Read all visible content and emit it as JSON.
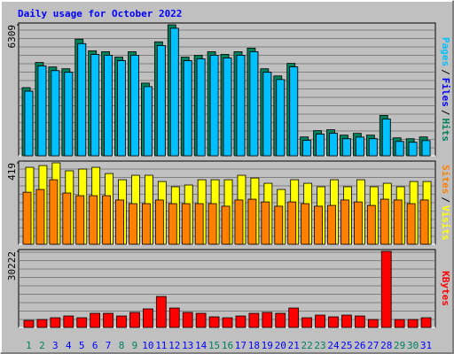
{
  "chart_data": [
    {
      "type": "bar",
      "title": "Daily usage for October 2022",
      "legend_separator": "/",
      "categories": [
        "1",
        "2",
        "3",
        "4",
        "5",
        "6",
        "7",
        "8",
        "9",
        "10",
        "11",
        "12",
        "13",
        "14",
        "15",
        "16",
        "17",
        "18",
        "19",
        "20",
        "21",
        "22",
        "23",
        "24",
        "25",
        "26",
        "27",
        "28",
        "29",
        "30",
        "31"
      ],
      "category_colors": [
        "#00805c",
        "#00805c",
        "#0000ff",
        "#0000ff",
        "#0000ff",
        "#0000ff",
        "#0000ff",
        "#00805c",
        "#00805c",
        "#0000ff",
        "#0000ff",
        "#0000ff",
        "#0000ff",
        "#0000ff",
        "#00805c",
        "#00805c",
        "#0000ff",
        "#0000ff",
        "#0000ff",
        "#0000ff",
        "#0000ff",
        "#00805c",
        "#00805c",
        "#0000ff",
        "#0000ff",
        "#0000ff",
        "#0000ff",
        "#0000ff",
        "#00805c",
        "#00805c",
        "#0000ff"
      ],
      "ylim": [
        0,
        6309
      ],
      "yticks": [
        6309
      ],
      "series": [
        {
          "name": "Hits",
          "color": "#00805c",
          "values": [
            3283,
            4494,
            4278,
            4191,
            5618,
            5056,
            5013,
            4753,
            5013,
            3500,
            5488,
            6309,
            4753,
            4840,
            5013,
            4883,
            5013,
            5186,
            4191,
            3846,
            4451,
            907,
            1210,
            1253,
            994,
            1080,
            994,
            1945,
            864,
            821,
            907
          ]
        },
        {
          "name": "Files",
          "color": "#0000ff",
          "values": [
            3110,
            4320,
            4100,
            4020,
            5400,
            4880,
            4840,
            4580,
            4840,
            3330,
            5310,
            6140,
            4580,
            4670,
            4840,
            4710,
            4840,
            5010,
            4020,
            3670,
            4280,
            740,
            1040,
            1080,
            820,
            900,
            820,
            1770,
            690,
            650,
            730
          ]
        },
        {
          "name": "Pages",
          "color": "#00c0ff",
          "values": [
            3110,
            4320,
            4100,
            4020,
            5400,
            4880,
            4840,
            4580,
            4840,
            3330,
            5310,
            6140,
            4580,
            4670,
            4840,
            4710,
            4840,
            5010,
            4020,
            3670,
            4280,
            740,
            1040,
            1080,
            820,
            900,
            820,
            1770,
            690,
            650,
            730
          ]
        }
      ]
    },
    {
      "type": "bar",
      "ylim": [
        0,
        419
      ],
      "yticks": [
        419
      ],
      "series": [
        {
          "name": "Visits",
          "color": "#ffff00",
          "values": [
            396,
            405,
            419,
            378,
            387,
            396,
            364,
            332,
            355,
            355,
            323,
            296,
            305,
            332,
            332,
            332,
            355,
            341,
            314,
            282,
            332,
            314,
            296,
            332,
            296,
            332,
            296,
            314,
            296,
            323,
            323
          ]
        },
        {
          "name": "Sites",
          "color": "#ff8000",
          "values": [
            268,
            282,
            332,
            264,
            250,
            250,
            250,
            228,
            209,
            209,
            228,
            209,
            209,
            209,
            209,
            196,
            228,
            232,
            218,
            196,
            218,
            209,
            196,
            200,
            228,
            218,
            200,
            232,
            228,
            209,
            228
          ]
        }
      ]
    },
    {
      "type": "bar",
      "ylim": [
        0,
        30222
      ],
      "yticks": [
        30222
      ],
      "series": [
        {
          "name": "KBytes",
          "color": "#ff0000",
          "values": [
            2810,
            3160,
            3860,
            4560,
            3860,
            5620,
            5620,
            4560,
            5970,
            7370,
            12300,
            7720,
            5970,
            5620,
            4210,
            3860,
            4560,
            5620,
            5970,
            5620,
            7720,
            3860,
            4910,
            4210,
            4910,
            4560,
            3160,
            30222,
            3160,
            3160,
            3860
          ]
        }
      ]
    }
  ]
}
